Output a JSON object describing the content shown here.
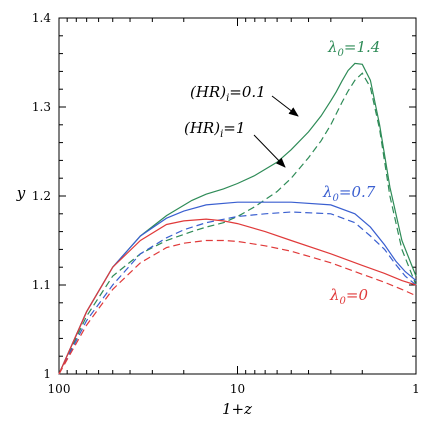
{
  "chart_data": {
    "type": "line",
    "xlabel": "1+z",
    "ylabel": "y",
    "x_scale": "log",
    "x_reversed": true,
    "xlim": [
      100,
      1
    ],
    "ylim": [
      1.0,
      1.4
    ],
    "x_ticks": [
      100,
      10,
      1
    ],
    "x_tick_labels": [
      "100",
      "10",
      "1"
    ],
    "y_ticks": [
      1.0,
      1.1,
      1.2,
      1.3,
      1.4
    ],
    "y_tick_labels": [
      "1",
      "1.1",
      "1.2",
      "1.3",
      "1.4"
    ],
    "grid": false,
    "series": [
      {
        "group": "λ0=1.4",
        "style": "solid",
        "color": "#2e8b57",
        "x": [
          100,
          70,
          50,
          35,
          25,
          18,
          15,
          12,
          10,
          8,
          6,
          5,
          4,
          3.4,
          3,
          2.8,
          2.6,
          2.4,
          2.2,
          2.0,
          1.8,
          1.6,
          1.4,
          1.2,
          1.0
        ],
        "y": [
          1.0,
          1.07,
          1.12,
          1.155,
          1.178,
          1.195,
          1.202,
          1.208,
          1.214,
          1.223,
          1.238,
          1.252,
          1.272,
          1.29,
          1.307,
          1.317,
          1.329,
          1.341,
          1.349,
          1.348,
          1.33,
          1.28,
          1.21,
          1.15,
          1.11
        ]
      },
      {
        "group": "λ0=1.4",
        "style": "dashed",
        "color": "#2e8b57",
        "x": [
          100,
          70,
          50,
          35,
          25,
          18,
          15,
          12,
          10,
          8,
          6,
          5,
          4,
          3.4,
          3,
          2.6,
          2.4,
          2.2,
          2.0,
          1.8,
          1.6,
          1.4,
          1.2,
          1.0
        ],
        "y": [
          1.0,
          1.065,
          1.11,
          1.135,
          1.15,
          1.16,
          1.165,
          1.17,
          1.177,
          1.188,
          1.205,
          1.22,
          1.243,
          1.262,
          1.28,
          1.305,
          1.318,
          1.33,
          1.338,
          1.322,
          1.275,
          1.2,
          1.14,
          1.1
        ]
      },
      {
        "group": "λ0=0.7",
        "style": "solid",
        "color": "#3a5fd0",
        "x": [
          100,
          70,
          50,
          35,
          25,
          20,
          15,
          10,
          7,
          5,
          3,
          2.2,
          1.8,
          1.5,
          1.3,
          1.15,
          1.0
        ],
        "y": [
          1.0,
          1.07,
          1.12,
          1.155,
          1.175,
          1.183,
          1.19,
          1.193,
          1.193,
          1.193,
          1.19,
          1.18,
          1.165,
          1.145,
          1.127,
          1.115,
          1.105
        ]
      },
      {
        "group": "λ0=0.7",
        "style": "dashed",
        "color": "#3a5fd0",
        "x": [
          100,
          70,
          50,
          35,
          25,
          20,
          15,
          10,
          7,
          5,
          3,
          2.2,
          1.8,
          1.5,
          1.3,
          1.15,
          1.0
        ],
        "y": [
          1.0,
          1.06,
          1.1,
          1.135,
          1.153,
          1.162,
          1.17,
          1.177,
          1.18,
          1.182,
          1.18,
          1.17,
          1.155,
          1.14,
          1.123,
          1.11,
          1.1
        ]
      },
      {
        "group": "λ0=0",
        "style": "solid",
        "color": "#e03a3a",
        "x": [
          100,
          70,
          50,
          35,
          25,
          20,
          15,
          12,
          10,
          7,
          5,
          3,
          2,
          1.5,
          1.2,
          1.0
        ],
        "y": [
          1.0,
          1.07,
          1.12,
          1.15,
          1.168,
          1.172,
          1.174,
          1.172,
          1.169,
          1.16,
          1.15,
          1.135,
          1.122,
          1.113,
          1.105,
          1.1
        ]
      },
      {
        "group": "λ0=0",
        "style": "dashed",
        "color": "#e03a3a",
        "x": [
          100,
          70,
          50,
          35,
          25,
          20,
          15,
          12,
          10,
          7,
          5,
          3,
          2,
          1.5,
          1.2,
          1.0
        ],
        "y": [
          1.0,
          1.055,
          1.095,
          1.125,
          1.142,
          1.147,
          1.15,
          1.15,
          1.149,
          1.144,
          1.138,
          1.125,
          1.112,
          1.103,
          1.095,
          1.088
        ]
      }
    ],
    "annotations": [
      {
        "main": "λ",
        "sub": "0",
        "rest": "=1.4",
        "color": "#2e8b57"
      },
      {
        "main": "λ",
        "sub": "0",
        "rest": "=0.7",
        "color": "#3a5fd0"
      },
      {
        "main": "λ",
        "sub": "0",
        "rest": "=0",
        "color": "#e03a3a"
      },
      {
        "main": "(HR)",
        "sub": "i",
        "rest": "=0.1",
        "color": "#000000"
      },
      {
        "main": "(HR)",
        "sub": "i",
        "rest": "=1",
        "color": "#000000"
      }
    ]
  }
}
